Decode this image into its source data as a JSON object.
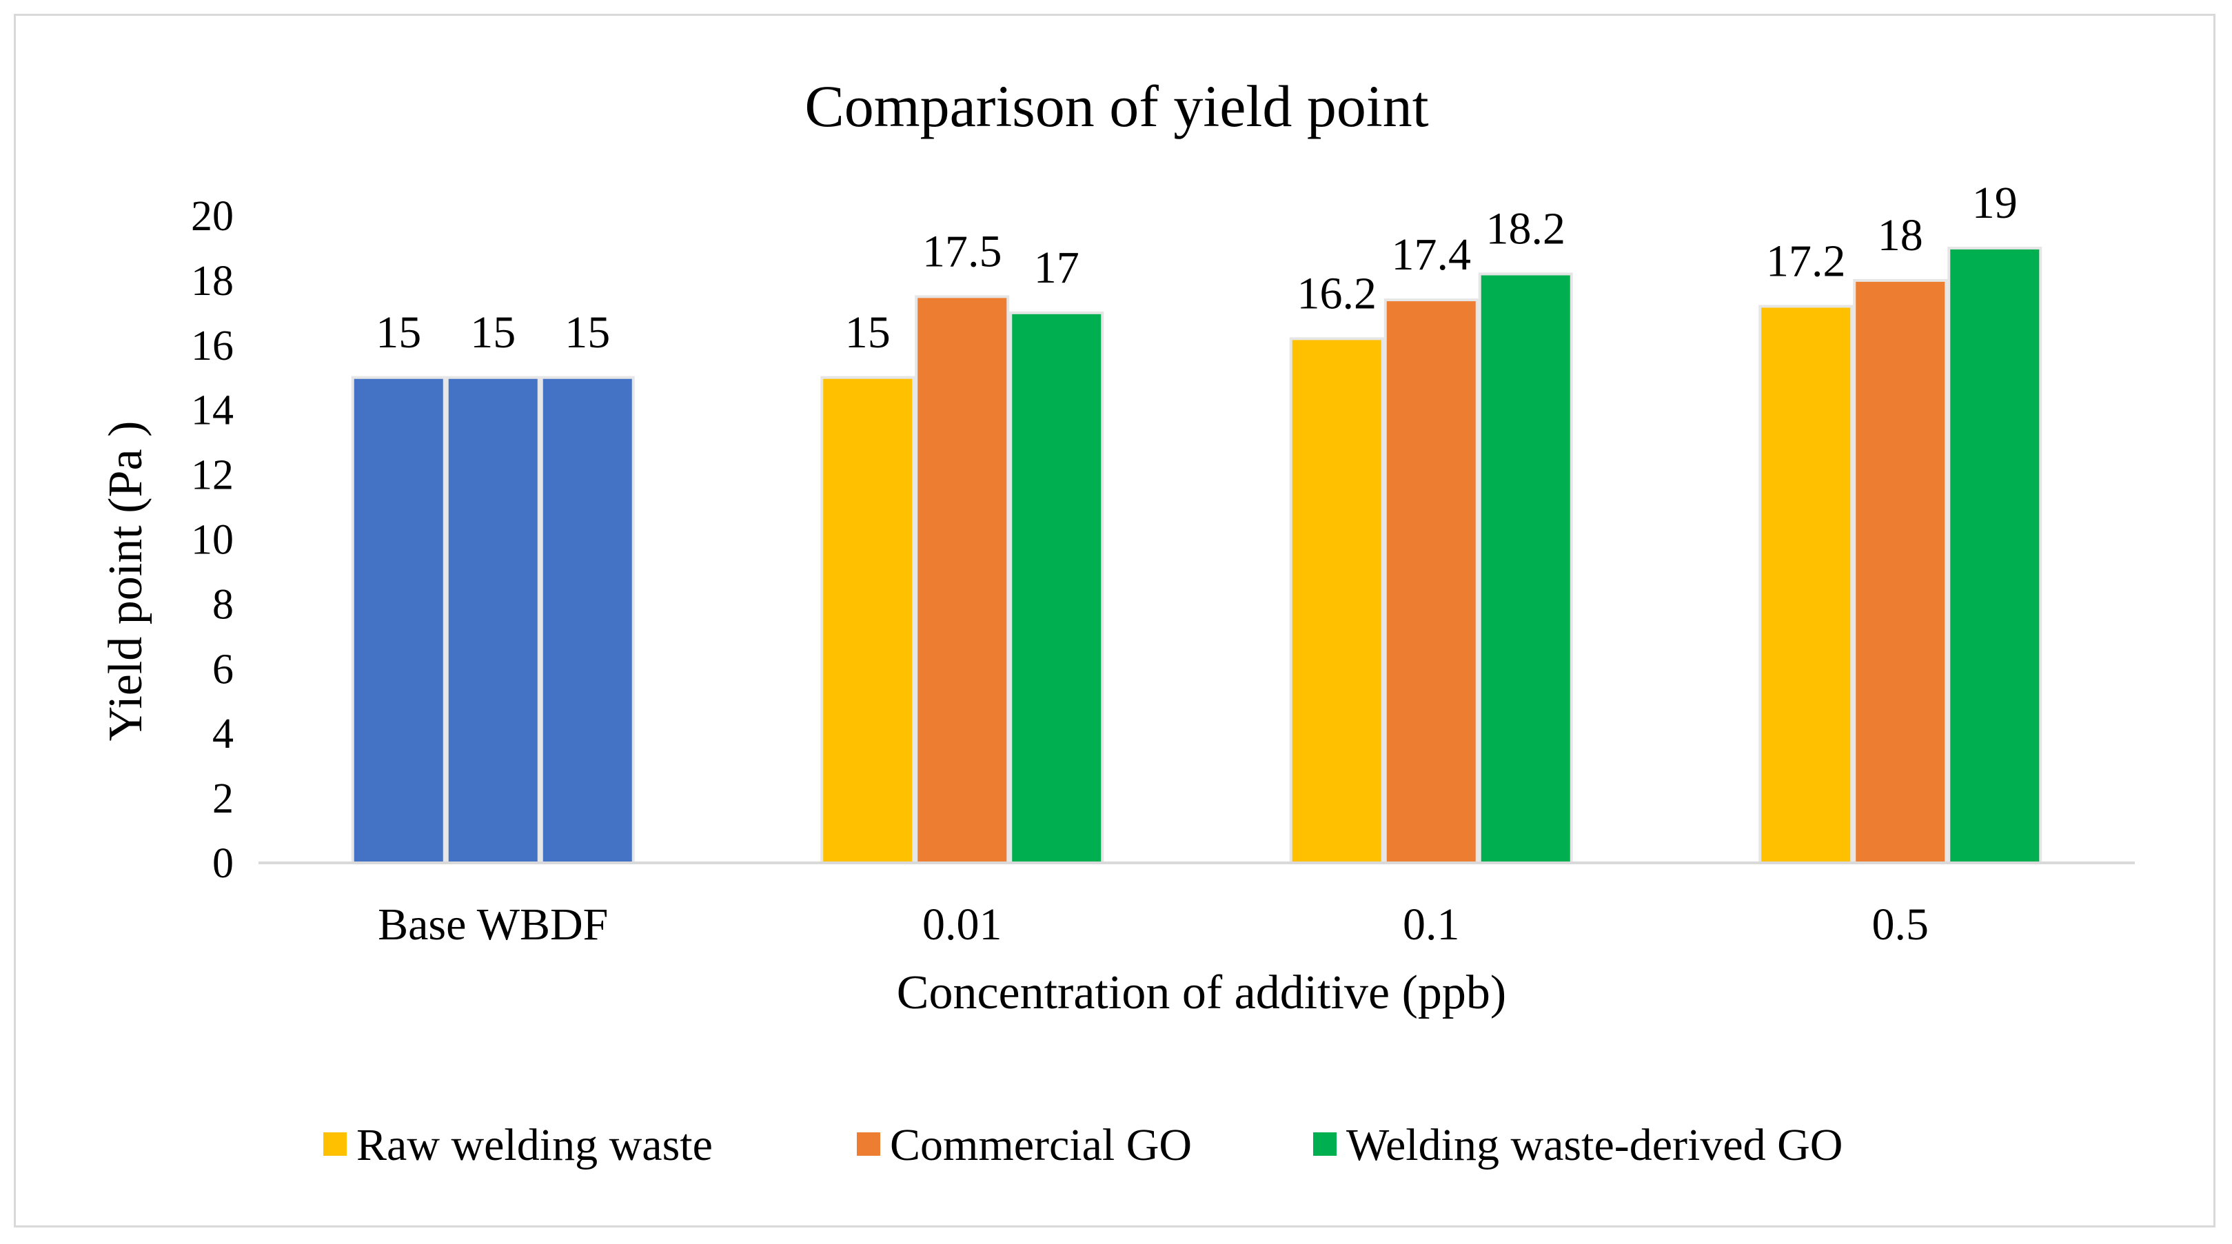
{
  "chart_data": {
    "type": "bar",
    "title": "Comparison of yield point",
    "xlabel": "Concentration of additive (ppb)",
    "ylabel": "Yield point (Pa )",
    "ylim": [
      0,
      20
    ],
    "yticks": [
      "0",
      "2",
      "4",
      "6",
      "8",
      "10",
      "12",
      "14",
      "16",
      "18",
      "20"
    ],
    "grid": false,
    "legend_position": "bottom",
    "categories": [
      "Base WBDF",
      "0.01",
      "0.1",
      "0.5"
    ],
    "base_color": "#4472C4",
    "series": [
      {
        "name": "Raw welding waste",
        "color": "#FFC000",
        "values": [
          15,
          15,
          16.2,
          17.2
        ],
        "labels": [
          "15",
          "15",
          "16.2",
          "17.2"
        ]
      },
      {
        "name": "Commercial GO",
        "color": "#ED7D31",
        "values": [
          15,
          17.5,
          17.4,
          18
        ],
        "labels": [
          "15",
          "17.5",
          "17.4",
          "18"
        ]
      },
      {
        "name": "Welding waste-derived GO",
        "color": "#00B050",
        "values": [
          15,
          17,
          18.2,
          19
        ],
        "labels": [
          "15",
          "17",
          "18.2",
          "19"
        ]
      }
    ]
  }
}
